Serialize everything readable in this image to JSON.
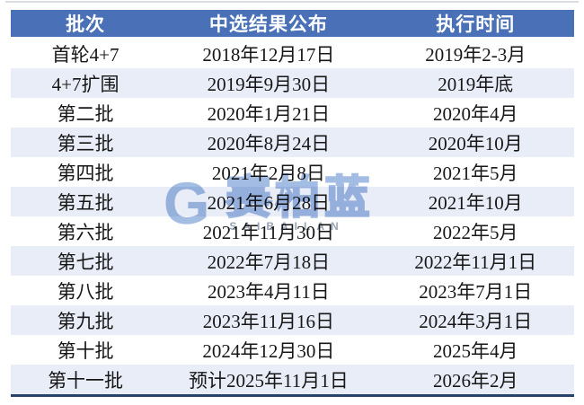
{
  "chart_data": {
    "type": "table",
    "columns": [
      "批次",
      "中选结果公布",
      "执行时间"
    ],
    "rows": [
      [
        "首轮4+7",
        "2018年12月17日",
        "2019年2-3月"
      ],
      [
        "4+7扩围",
        "2019年9月30日",
        "2019年底"
      ],
      [
        "第二批",
        "2020年1月21日",
        "2020年4月"
      ],
      [
        "第三批",
        "2020年8月24日",
        "2020年10月"
      ],
      [
        "第四批",
        "2021年2月8日",
        "2021年5月"
      ],
      [
        "第五批",
        "2021年6月28日",
        "2021年10月"
      ],
      [
        "第六批",
        "2021年11月30日",
        "2022年5月"
      ],
      [
        "第七批",
        "2022年7月18日",
        "2022年11月1日"
      ],
      [
        "第八批",
        "2023年4月11日",
        "2023年7月1日"
      ],
      [
        "第九批",
        "2023年11月16日",
        "2024年3月1日"
      ],
      [
        "第十批",
        "2024年12月30日",
        "2025年4月"
      ],
      [
        "第十一批",
        "预计2025年11月1日",
        "2026年2月"
      ]
    ],
    "layout": {
      "striped": true,
      "header_position": "top"
    }
  },
  "watermark": {
    "glyph": "G",
    "text": "赛柏蓝",
    "subtext": "SAIBAILAN"
  },
  "colors": {
    "header_bg": "#4a71b7",
    "header_text": "#ffffff",
    "row_bg": "#ffffff",
    "row_alt_bg": "#e9edf8",
    "cell_text": "#171717",
    "bottom_border": "#27436d",
    "watermark_blue": "#a3bee2"
  }
}
